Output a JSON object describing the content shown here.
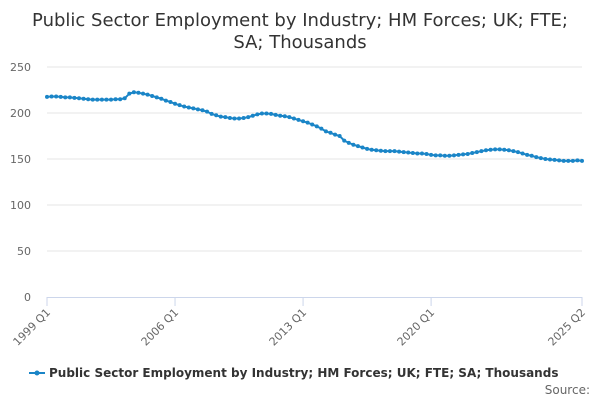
{
  "chart_data": {
    "type": "line",
    "title_lines": [
      "Public Sector Employment by Industry; HM Forces; UK; FTE;",
      "SA; Thousands"
    ],
    "ylim": [
      0,
      250
    ],
    "y_ticks": [
      "0",
      "50",
      "100",
      "150",
      "200",
      "250"
    ],
    "x_tick_labels": [
      "1999 Q1",
      "2006 Q1",
      "2013 Q1",
      "2020 Q1",
      "2025 Q2"
    ],
    "grid": true,
    "legend_position": "bottom",
    "series": [
      {
        "name": "Public Sector Employment by Industry; HM Forces; UK; FTE; SA; Thousands",
        "color": "#1a85c7",
        "values": [
          217.5,
          218.0,
          218.0,
          217.5,
          217.0,
          217.0,
          216.5,
          216.0,
          215.5,
          215.0,
          214.5,
          214.5,
          214.5,
          214.5,
          214.5,
          215.0,
          215.0,
          216.0,
          221.0,
          222.5,
          222.0,
          221.0,
          220.0,
          218.5,
          217.0,
          215.5,
          213.5,
          212.0,
          210.0,
          208.5,
          207.0,
          206.0,
          205.0,
          204.0,
          203.0,
          201.5,
          199.0,
          197.5,
          196.0,
          195.5,
          194.5,
          194.0,
          194.0,
          194.5,
          195.5,
          197.0,
          198.5,
          199.5,
          199.5,
          199.0,
          198.0,
          197.0,
          196.5,
          195.5,
          194.0,
          192.5,
          191.0,
          189.5,
          187.5,
          185.5,
          183.0,
          180.0,
          178.5,
          176.5,
          175.0,
          170.0,
          167.5,
          165.5,
          164.0,
          162.5,
          161.0,
          160.0,
          159.5,
          159.0,
          158.5,
          158.5,
          158.5,
          158.0,
          157.5,
          157.0,
          156.5,
          156.0,
          156.0,
          155.5,
          154.5,
          154.0,
          154.0,
          153.5,
          153.5,
          154.0,
          154.5,
          155.0,
          155.5,
          156.5,
          157.5,
          158.5,
          159.5,
          160.0,
          160.5,
          160.5,
          160.0,
          159.5,
          158.5,
          157.5,
          156.0,
          154.5,
          153.5,
          152.0,
          151.0,
          150.0,
          149.5,
          149.0,
          148.5,
          148.0,
          148.0,
          148.0,
          148.5,
          148.0
        ]
      }
    ]
  },
  "credits": "Source:"
}
